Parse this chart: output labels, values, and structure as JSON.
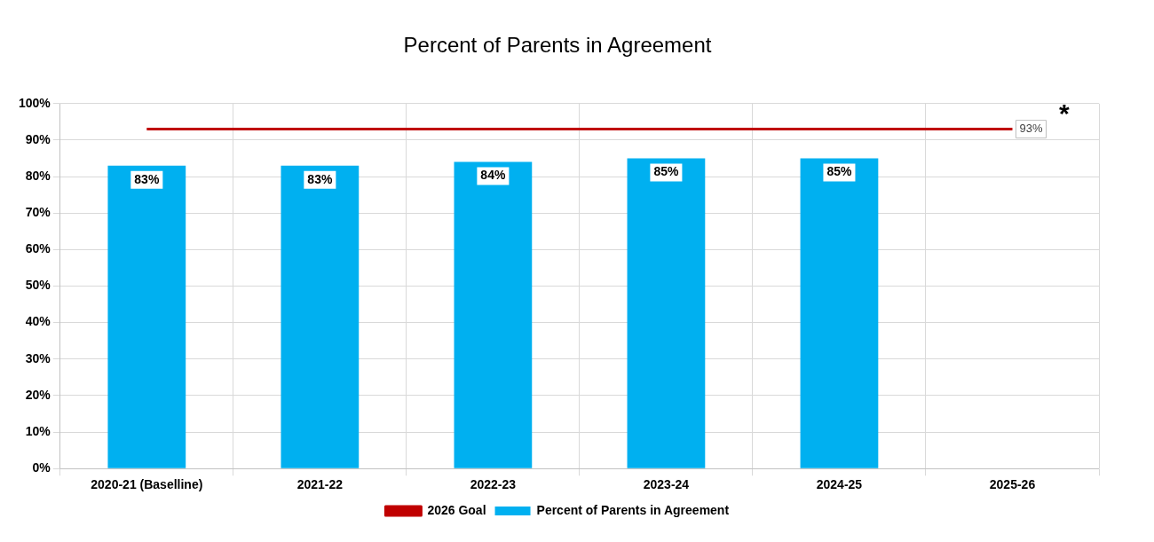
{
  "chart_data": {
    "type": "bar",
    "title": "Percent of Parents in Agreement",
    "categories": [
      "2020-21 (Baselline)",
      "2021-22",
      "2022-23",
      "2023-24",
      "2024-25",
      "2025-26"
    ],
    "series": [
      {
        "name": "Percent of Parents in Agreement",
        "color": "#00b0f0",
        "values": [
          83,
          83,
          84,
          85,
          85,
          null
        ],
        "value_labels": [
          "83%",
          "83%",
          "84%",
          "85%",
          "85%",
          null
        ]
      },
      {
        "name": "2026 Goal",
        "type": "line",
        "color": "#c00000",
        "values": [
          93,
          93,
          93,
          93,
          93,
          93
        ],
        "value_labels": [
          null,
          null,
          null,
          null,
          null,
          "93%"
        ]
      }
    ],
    "ylim": [
      0,
      100
    ],
    "yticks": [
      {
        "value": 0,
        "label": "0%"
      },
      {
        "value": 10,
        "label": "10%"
      },
      {
        "value": 20,
        "label": "20%"
      },
      {
        "value": 30,
        "label": "30%"
      },
      {
        "value": 40,
        "label": "40%"
      },
      {
        "value": 50,
        "label": "50%"
      },
      {
        "value": 60,
        "label": "60%"
      },
      {
        "value": 70,
        "label": "70%"
      },
      {
        "value": 80,
        "label": "80%"
      },
      {
        "value": 90,
        "label": "90%"
      },
      {
        "value": 100,
        "label": "100%"
      }
    ],
    "grid": true,
    "legend": "bottom",
    "marker": "none",
    "annotations": [
      "*"
    ]
  }
}
